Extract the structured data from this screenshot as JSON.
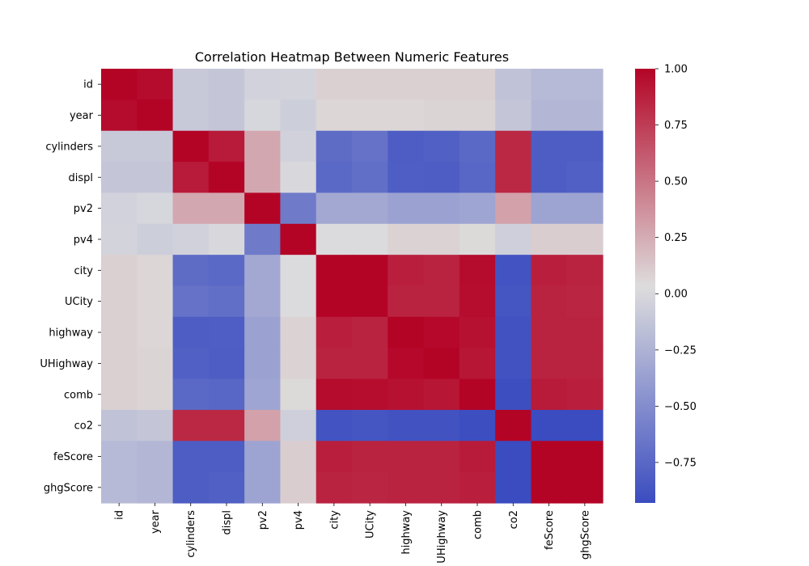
{
  "chart_data": {
    "type": "heatmap",
    "title": "Correlation Heatmap Between Numeric Features",
    "xlabel": "",
    "ylabel": "",
    "labels": [
      "id",
      "year",
      "cylinders",
      "displ",
      "pv2",
      "pv4",
      "city",
      "UCity",
      "highway",
      "UHighway",
      "comb",
      "co2",
      "feScore",
      "ghgScore"
    ],
    "matrix": [
      [
        1.0,
        0.97,
        -0.1,
        -0.12,
        -0.04,
        -0.03,
        0.09,
        0.09,
        0.09,
        0.09,
        0.09,
        -0.14,
        -0.2,
        -0.2
      ],
      [
        0.97,
        1.0,
        -0.1,
        -0.12,
        -0.01,
        -0.07,
        0.06,
        0.06,
        0.06,
        0.07,
        0.07,
        -0.12,
        -0.22,
        -0.22
      ],
      [
        -0.1,
        -0.1,
        1.0,
        0.9,
        0.27,
        -0.05,
        -0.72,
        -0.68,
        -0.82,
        -0.8,
        -0.74,
        0.84,
        -0.82,
        -0.82
      ],
      [
        -0.12,
        -0.12,
        0.9,
        1.0,
        0.27,
        0.0,
        -0.74,
        -0.7,
        -0.81,
        -0.82,
        -0.76,
        0.84,
        -0.82,
        -0.8
      ],
      [
        -0.04,
        -0.01,
        0.27,
        0.27,
        1.0,
        -0.62,
        -0.32,
        -0.32,
        -0.36,
        -0.36,
        -0.34,
        0.3,
        -0.35,
        -0.35
      ],
      [
        -0.03,
        -0.07,
        -0.05,
        0.0,
        -0.62,
        1.0,
        0.02,
        0.02,
        0.08,
        0.08,
        0.05,
        -0.06,
        0.1,
        0.1
      ],
      [
        0.09,
        0.06,
        -0.72,
        -0.74,
        -0.32,
        0.02,
        1.0,
        1.0,
        0.88,
        0.86,
        0.97,
        -0.88,
        0.88,
        0.86
      ],
      [
        0.09,
        0.06,
        -0.68,
        -0.7,
        -0.32,
        0.02,
        1.0,
        1.0,
        0.86,
        0.86,
        0.96,
        -0.87,
        0.86,
        0.85
      ],
      [
        0.09,
        0.06,
        -0.82,
        -0.81,
        -0.36,
        0.08,
        0.88,
        0.86,
        1.0,
        0.98,
        0.94,
        -0.89,
        0.86,
        0.86
      ],
      [
        0.09,
        0.07,
        -0.8,
        -0.82,
        -0.36,
        0.08,
        0.86,
        0.86,
        0.98,
        1.0,
        0.92,
        -0.89,
        0.86,
        0.86
      ],
      [
        0.09,
        0.07,
        -0.74,
        -0.76,
        -0.34,
        0.05,
        0.97,
        0.96,
        0.94,
        0.92,
        1.0,
        -0.92,
        0.9,
        0.88
      ],
      [
        -0.14,
        -0.12,
        0.84,
        0.84,
        0.3,
        -0.06,
        -0.88,
        -0.87,
        -0.89,
        -0.89,
        -0.92,
        1.0,
        -0.93,
        -0.93
      ],
      [
        -0.2,
        -0.22,
        -0.82,
        -0.82,
        -0.35,
        0.1,
        0.88,
        0.86,
        0.86,
        0.86,
        0.9,
        -0.93,
        1.0,
        1.0
      ],
      [
        -0.2,
        -0.22,
        -0.82,
        -0.8,
        -0.35,
        0.1,
        0.86,
        0.85,
        0.86,
        0.86,
        0.88,
        -0.93,
        1.0,
        1.0
      ]
    ],
    "color_scale": {
      "name": "coolwarm",
      "vmin": -0.93,
      "vmax": 1.0,
      "colors": [
        "#3b4cc0",
        "#dddddd",
        "#b40426"
      ]
    },
    "colorbar_ticks": [
      1.0,
      0.75,
      0.5,
      0.25,
      0.0,
      -0.25,
      -0.5,
      -0.75
    ],
    "colorbar_tick_labels": [
      "1.00",
      "0.75",
      "0.50",
      "0.25",
      "0.00",
      "−0.25",
      "−0.50",
      "−0.75"
    ]
  }
}
